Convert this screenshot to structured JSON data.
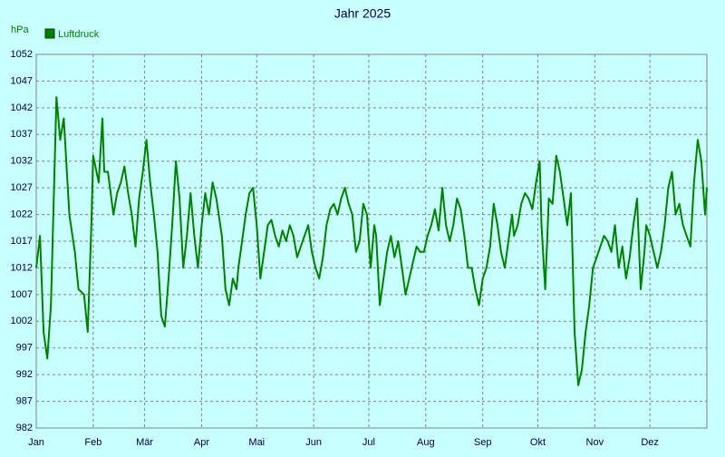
{
  "chart_data": {
    "type": "line",
    "title": "Jahr 2025",
    "y_label": "hPa",
    "xlim": [
      0,
      365
    ],
    "xticks": [
      {
        "value": 0,
        "label": "Jan"
      },
      {
        "value": 31,
        "label": "Feb"
      },
      {
        "value": 59,
        "label": "Mär"
      },
      {
        "value": 90,
        "label": "Apr"
      },
      {
        "value": 120,
        "label": "Mai"
      },
      {
        "value": 151,
        "label": "Jun"
      },
      {
        "value": 181,
        "label": "Jul"
      },
      {
        "value": 212,
        "label": "Aug"
      },
      {
        "value": 243,
        "label": "Sep"
      },
      {
        "value": 273,
        "label": "Okt"
      },
      {
        "value": 304,
        "label": "Nov"
      },
      {
        "value": 334,
        "label": "Dez"
      }
    ],
    "ylim": [
      982,
      1052
    ],
    "yticks": [
      982,
      987,
      992,
      997,
      1002,
      1007,
      1012,
      1017,
      1022,
      1027,
      1032,
      1037,
      1042,
      1047,
      1052
    ],
    "grid": true,
    "legend": "top-left",
    "x": [
      0,
      2,
      4,
      6,
      8,
      11,
      13,
      15,
      18,
      21,
      23,
      26,
      28,
      30,
      31,
      34,
      36,
      37,
      39,
      42,
      44,
      46,
      48,
      50,
      52,
      54,
      56,
      58,
      60,
      62,
      64,
      66,
      68,
      70,
      72,
      74,
      76,
      78,
      80,
      82,
      84,
      86,
      88,
      90,
      92,
      94,
      96,
      98,
      101,
      103,
      105,
      107,
      109,
      110,
      112,
      114,
      116,
      118,
      120,
      122,
      124,
      126,
      128,
      130,
      132,
      134,
      136,
      138,
      140,
      142,
      144,
      146,
      148,
      150,
      152,
      154,
      156,
      158,
      160,
      162,
      164,
      166,
      168,
      170,
      172,
      174,
      176,
      178,
      180,
      182,
      184,
      185,
      187,
      189,
      191,
      193,
      195,
      197,
      199,
      201,
      203,
      205,
      207,
      209,
      211,
      213,
      215,
      217,
      219,
      221,
      223,
      225,
      227,
      229,
      231,
      233,
      235,
      237,
      239,
      241,
      243,
      245,
      247,
      249,
      251,
      253,
      255,
      257,
      259,
      260,
      262,
      264,
      266,
      268,
      270,
      272,
      274,
      275,
      277,
      279,
      281,
      283,
      285,
      287,
      289,
      291,
      293,
      295,
      297,
      299,
      301,
      303,
      305,
      307,
      309,
      311,
      313,
      315,
      317,
      319,
      321,
      323,
      325,
      327,
      329,
      331,
      332,
      334,
      336,
      338,
      340,
      342,
      344,
      346,
      348,
      350,
      352,
      354,
      356,
      358,
      360,
      362,
      364,
      365
    ],
    "series": [
      {
        "name": "Luftdruck",
        "color": "#008000",
        "values": [
          1012,
          1018,
          1000,
          995,
          1005,
          1044,
          1036,
          1040,
          1022,
          1015,
          1008,
          1007,
          1000,
          1020,
          1033,
          1028,
          1040,
          1030,
          1030,
          1022,
          1026,
          1028,
          1031,
          1026,
          1022,
          1016,
          1025,
          1030,
          1036,
          1028,
          1022,
          1015,
          1003,
          1001,
          1010,
          1020,
          1032,
          1025,
          1012,
          1018,
          1026,
          1018,
          1012,
          1020,
          1026,
          1022,
          1028,
          1025,
          1018,
          1008,
          1005,
          1010,
          1008,
          1012,
          1017,
          1022,
          1026,
          1027,
          1020,
          1010,
          1015,
          1020,
          1021,
          1018,
          1016,
          1019,
          1017,
          1020,
          1018,
          1014,
          1016,
          1018,
          1020,
          1015,
          1012,
          1010,
          1014,
          1020,
          1023,
          1024,
          1022,
          1025,
          1027,
          1024,
          1022,
          1015,
          1017,
          1024,
          1022,
          1012,
          1020,
          1018,
          1005,
          1010,
          1015,
          1018,
          1014,
          1017,
          1012,
          1007,
          1010,
          1013,
          1016,
          1015,
          1015,
          1018,
          1020,
          1023,
          1019,
          1027,
          1020,
          1017,
          1020,
          1025,
          1023,
          1018,
          1012,
          1012,
          1008,
          1005,
          1010,
          1012,
          1016,
          1024,
          1020,
          1015,
          1012,
          1017,
          1022,
          1018,
          1020,
          1024,
          1026,
          1025,
          1023,
          1028,
          1032,
          1020,
          1008,
          1025,
          1024,
          1033,
          1030,
          1025,
          1020,
          1026,
          1000,
          990,
          993,
          1000,
          1005,
          1012,
          1014,
          1016,
          1018,
          1017,
          1015,
          1020,
          1012,
          1016,
          1010,
          1014,
          1020,
          1025,
          1008,
          1015,
          1020,
          1018,
          1015,
          1012,
          1015,
          1020,
          1027,
          1030,
          1022,
          1024,
          1020,
          1018,
          1016,
          1028,
          1036,
          1032,
          1022,
          1027
        ]
      }
    ]
  }
}
